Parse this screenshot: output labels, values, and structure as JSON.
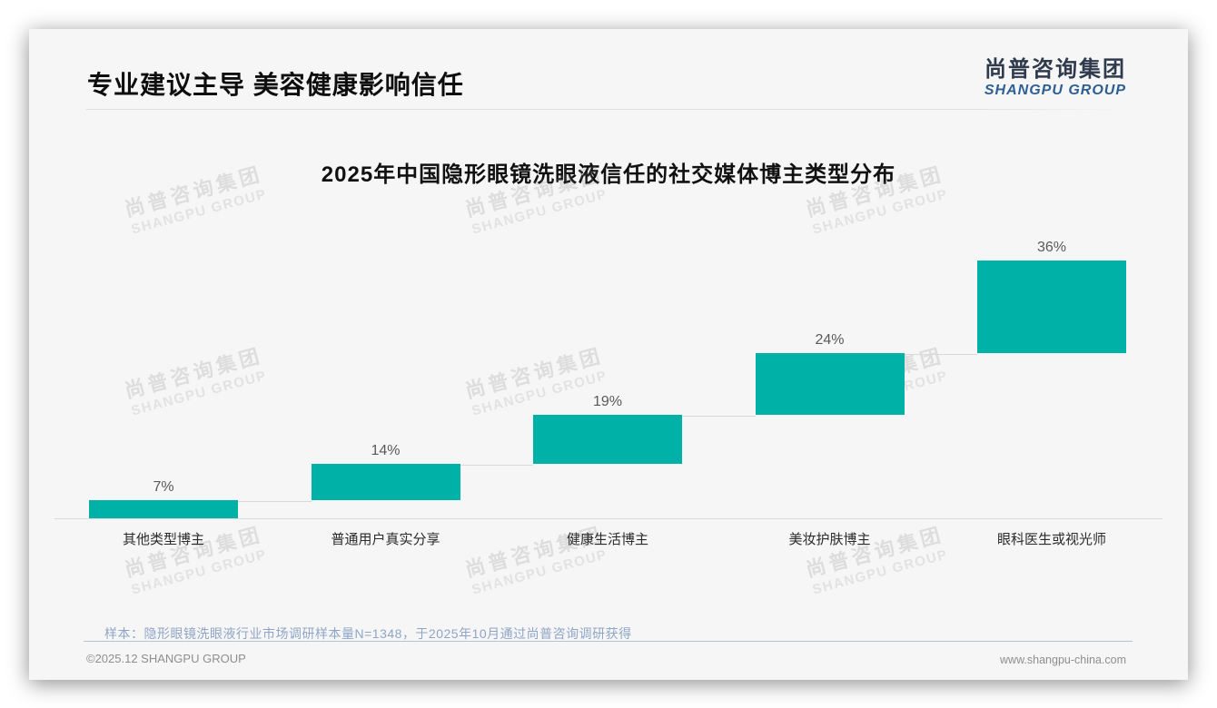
{
  "header": {
    "title": "专业建议主导 美容健康影响信任"
  },
  "logo": {
    "zh": "尚普咨询集团",
    "en": "SHANGPU GROUP"
  },
  "watermark": {
    "zh": "尚普咨询集团",
    "en": "SHANGPU GROUP"
  },
  "chart_data": {
    "type": "bar",
    "subtype": "waterfall-steps",
    "title": "2025年中国隐形眼镜洗眼液信任的社交媒体博主类型分布",
    "categories": [
      "其他类型博主",
      "普通用户真实分享",
      "健康生活博主",
      "美妆护肤博主",
      "眼科医生或视光师"
    ],
    "values": [
      7,
      14,
      19,
      24,
      36
    ],
    "value_labels": [
      "7%",
      "14%",
      "19%",
      "24%",
      "36%"
    ],
    "cumulative_baselines": [
      0,
      7,
      21,
      40,
      64
    ],
    "unit": "%",
    "ylim": [
      0,
      100
    ],
    "grid": false,
    "legend": null,
    "bar_color": "#00b1a8",
    "connector_color": "#d9d9d9",
    "value_label_color": "#595959",
    "category_label_color": "#2b2b2b"
  },
  "note": "样本：隐形眼镜洗眼液行业市场调研样本量N=1348，于2025年10月通过尚普咨询调研获得",
  "footer": {
    "left": "©2025.12 SHANGPU GROUP",
    "right": "www.shangpu-china.com"
  },
  "colors": {
    "accent_teal": "#00b1a8",
    "logo_navy": "#2f3b4d",
    "logo_blue": "#2d5f94",
    "note_blue": "#8fa5c6",
    "card_bg": "#f6f6f6"
  }
}
